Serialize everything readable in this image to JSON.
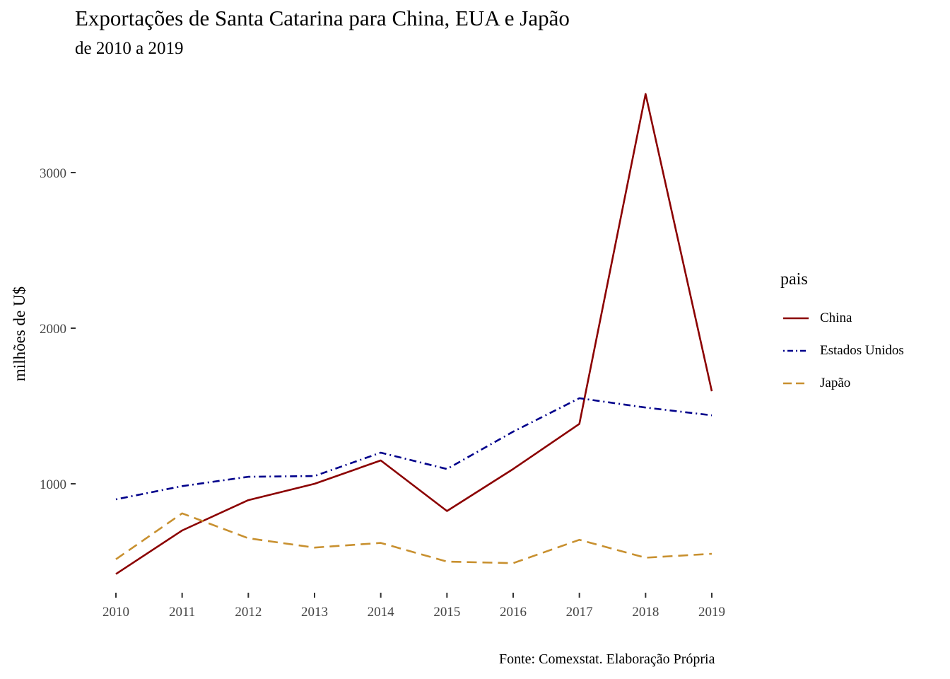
{
  "chart_data": {
    "type": "line",
    "title": "Exportações de Santa Catarina para China, EUA e Japão",
    "subtitle": "de 2010 a 2019",
    "xlabel": "",
    "ylabel": "milhões de U$",
    "caption": "Fonte: Comexstat. Elaboração Própria",
    "legend_title": "pais",
    "legend_position": "right",
    "grid": false,
    "x": [
      2010,
      2011,
      2012,
      2013,
      2014,
      2015,
      2016,
      2017,
      2018,
      2019
    ],
    "y_ticks": [
      1000,
      2000,
      3000
    ],
    "ylim": [
      316,
      3588
    ],
    "series": [
      {
        "name": "China",
        "color": "#8b0000",
        "dash": "solid",
        "values": [
          420,
          700,
          895,
          1000,
          1150,
          825,
          1095,
          1385,
          3505,
          1595
        ]
      },
      {
        "name": "Estados Unidos",
        "color": "#00008b",
        "dash": "dotdash",
        "values": [
          900,
          985,
          1045,
          1050,
          1200,
          1095,
          1335,
          1550,
          1490,
          1440
        ]
      },
      {
        "name": "Japão",
        "color": "#c8902f",
        "dash": "dashed",
        "values": [
          515,
          810,
          650,
          590,
          620,
          500,
          490,
          640,
          525,
          550
        ]
      }
    ]
  }
}
